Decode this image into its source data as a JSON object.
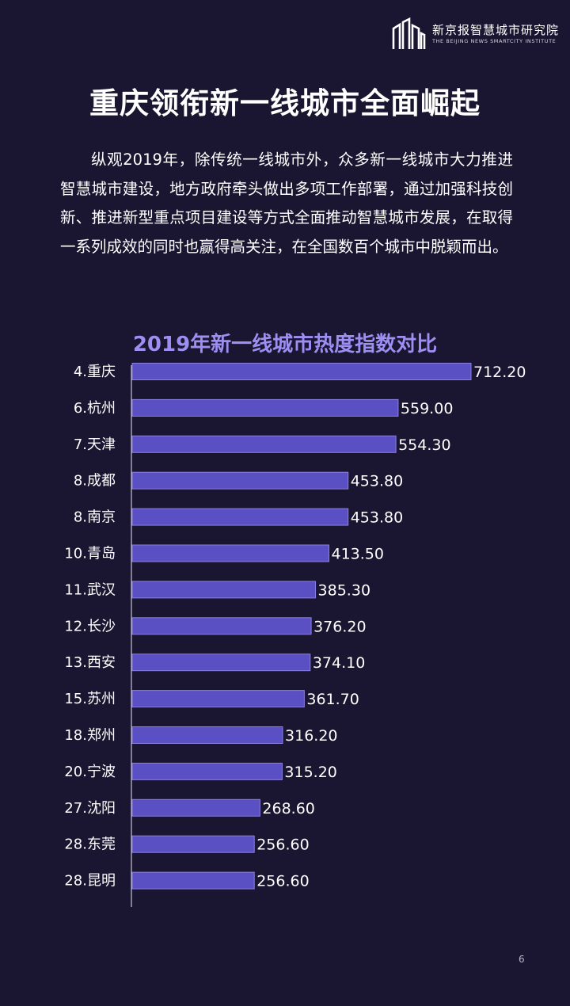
{
  "logo": {
    "name_cn": "新京报智慧城市研究院",
    "name_en": "THE BEIJING NEWS SMARTCITY INSTITUTE"
  },
  "page": {
    "title": "重庆领衔新一线城市全面崛起",
    "intro": "纵观2019年，除传统一线城市外，众多新一线城市大力推进智慧城市建设，地方政府牵头做出多项工作部署，通过加强科技创新、推进新型重点项目建设等方式全面推动智慧城市发展，在取得一系列成效的同时也赢得高关注，在全国数百个城市中脱颖而出。",
    "page_number": "6"
  },
  "colors": {
    "background": "#1a1530",
    "bar": "#5b4fc4",
    "bar_border": "#8a80e0",
    "chart_title": "#9d8ff2",
    "text": "#ffffff"
  },
  "chart_data": {
    "type": "bar",
    "orientation": "horizontal",
    "title": "2019年新一线城市热度指数对比",
    "categories": [
      "4.重庆",
      "6.杭州",
      "7.天津",
      "8.成都",
      "8.南京",
      "10.青岛",
      "11.武汉",
      "12.长沙",
      "13.西安",
      "15.苏州",
      "18.郑州",
      "20.宁波",
      "27.沈阳",
      "28.东莞",
      "28.昆明"
    ],
    "values": [
      712.2,
      559.0,
      554.3,
      453.8,
      453.8,
      413.5,
      385.3,
      376.2,
      374.1,
      361.7,
      316.2,
      315.2,
      268.6,
      256.6,
      256.6
    ],
    "value_labels": [
      "712.20",
      "559.00",
      "554.30",
      "453.80",
      "453.80",
      "413.50",
      "385.30",
      "376.20",
      "374.10",
      "361.70",
      "316.20",
      "315.20",
      "268.60",
      "256.60",
      "256.60"
    ],
    "xlim": [
      0,
      712.2
    ],
    "grid": false,
    "data_labels": true
  }
}
